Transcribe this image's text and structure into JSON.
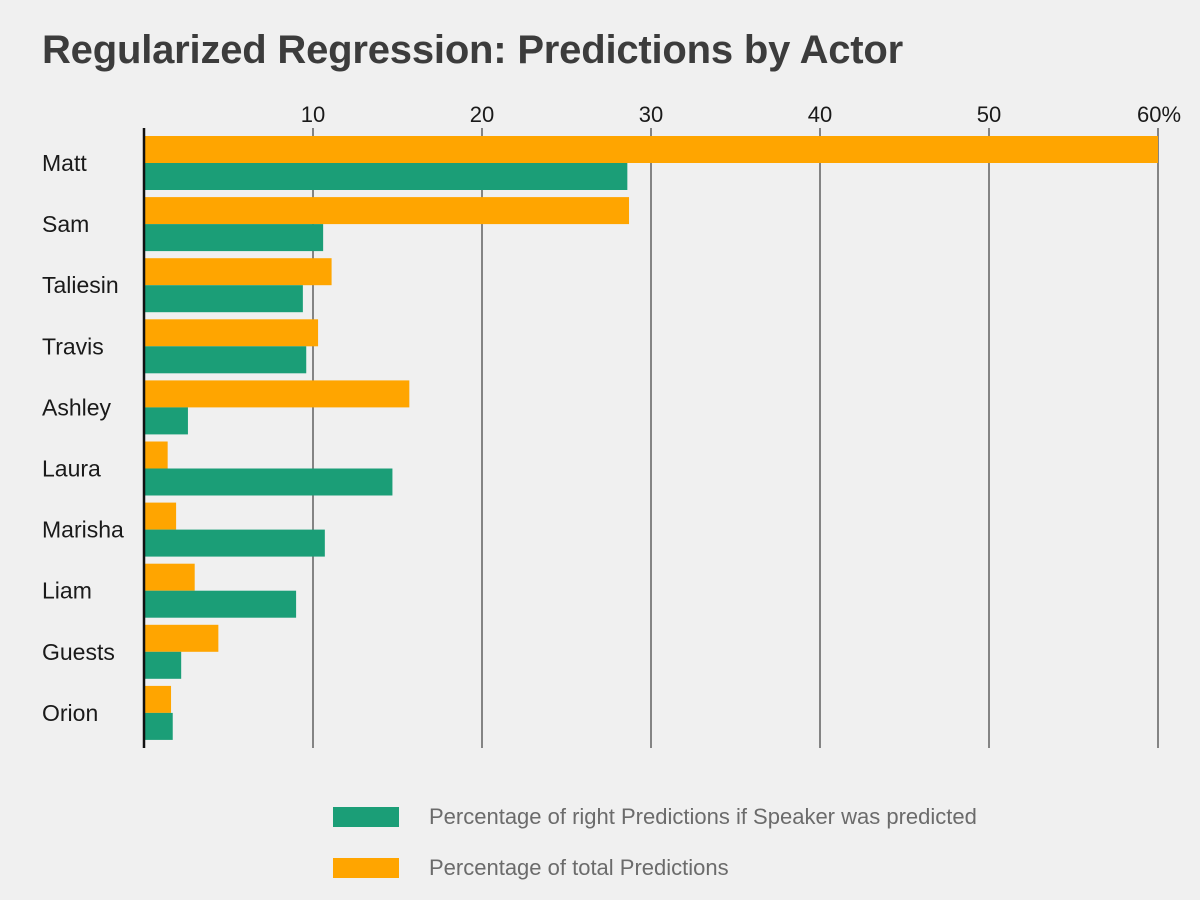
{
  "chart_data": {
    "type": "bar",
    "orientation": "horizontal",
    "title": "Regularized Regression: Predictions by Actor",
    "categories": [
      "Matt",
      "Sam",
      "Taliesin",
      "Travis",
      "Ashley",
      "Laura",
      "Marisha",
      "Liam",
      "Guests",
      "Orion"
    ],
    "series": [
      {
        "name": "Percentage of total Predictions",
        "color": "#ffa500",
        "values": [
          60.0,
          28.7,
          11.1,
          10.3,
          15.7,
          1.4,
          1.9,
          3.0,
          4.4,
          1.6
        ]
      },
      {
        "name": "Percentage of right Predictions if Speaker was predicted",
        "color": "#1b9e77",
        "values": [
          28.6,
          10.6,
          9.4,
          9.6,
          2.6,
          14.7,
          10.7,
          9.0,
          2.2,
          1.7
        ]
      }
    ],
    "x_ticks": [
      "10",
      "20",
      "30",
      "40",
      "50",
      "60%"
    ],
    "x_tick_values": [
      10,
      20,
      30,
      40,
      50,
      60
    ],
    "xlim": [
      0,
      60
    ],
    "grid": "vertical",
    "axis_position": "top",
    "legend_position": "bottom"
  },
  "legend": [
    {
      "label": "Percentage of right Predictions if Speaker was predicted",
      "color": "#1b9e77"
    },
    {
      "label": "Percentage of total Predictions",
      "color": "#ffa500"
    }
  ]
}
